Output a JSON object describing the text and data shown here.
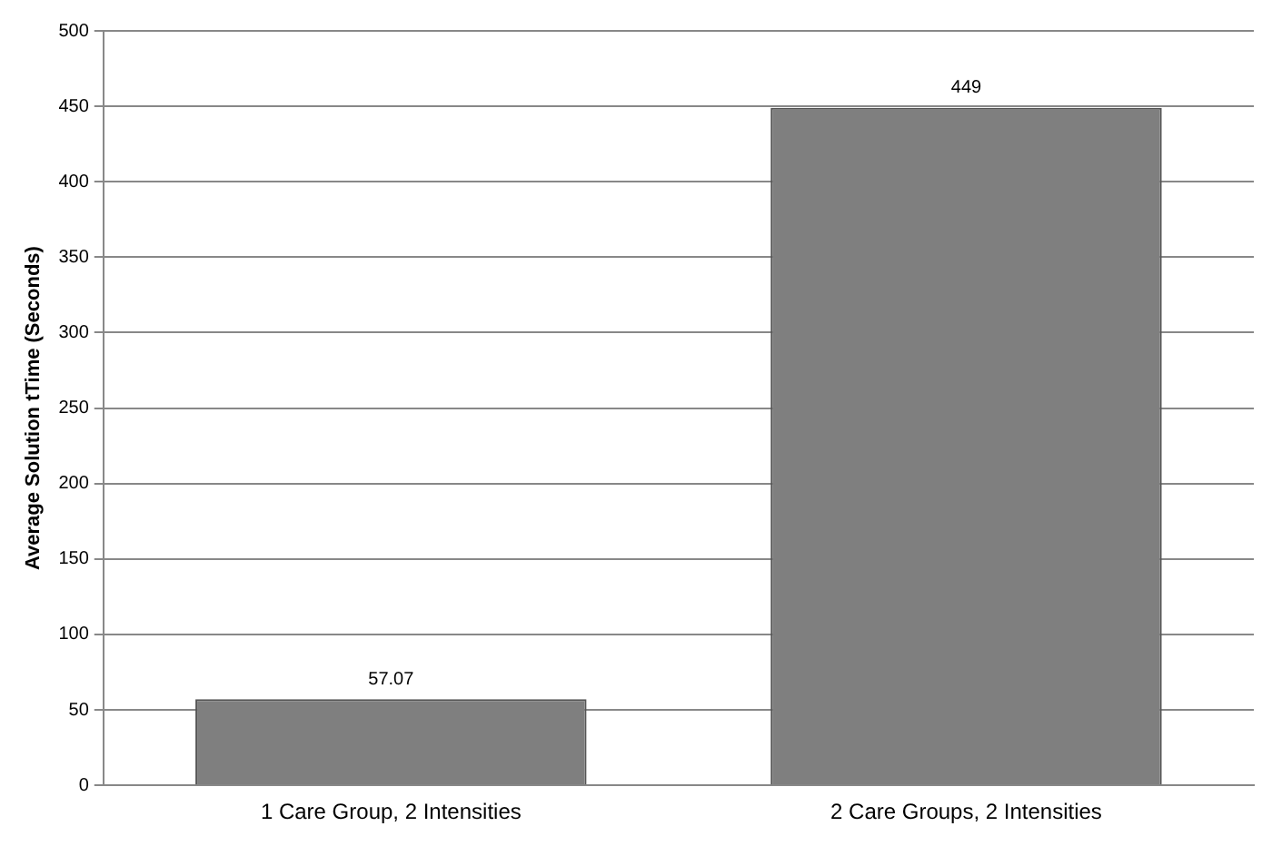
{
  "chart_data": {
    "type": "bar",
    "ylabel": "Average Solution tTime (Seconds)",
    "categories": [
      "1 Care Group, 2 Intensities",
      "2 Care Groups, 2 Intensities"
    ],
    "values": [
      57.07,
      449
    ],
    "color": "#7f7f7f",
    "data_labels": true,
    "ylim": [
      0,
      500
    ],
    "yticks": [
      0,
      50,
      100,
      150,
      200,
      250,
      300,
      350,
      400,
      450,
      500
    ],
    "grid": "y"
  }
}
